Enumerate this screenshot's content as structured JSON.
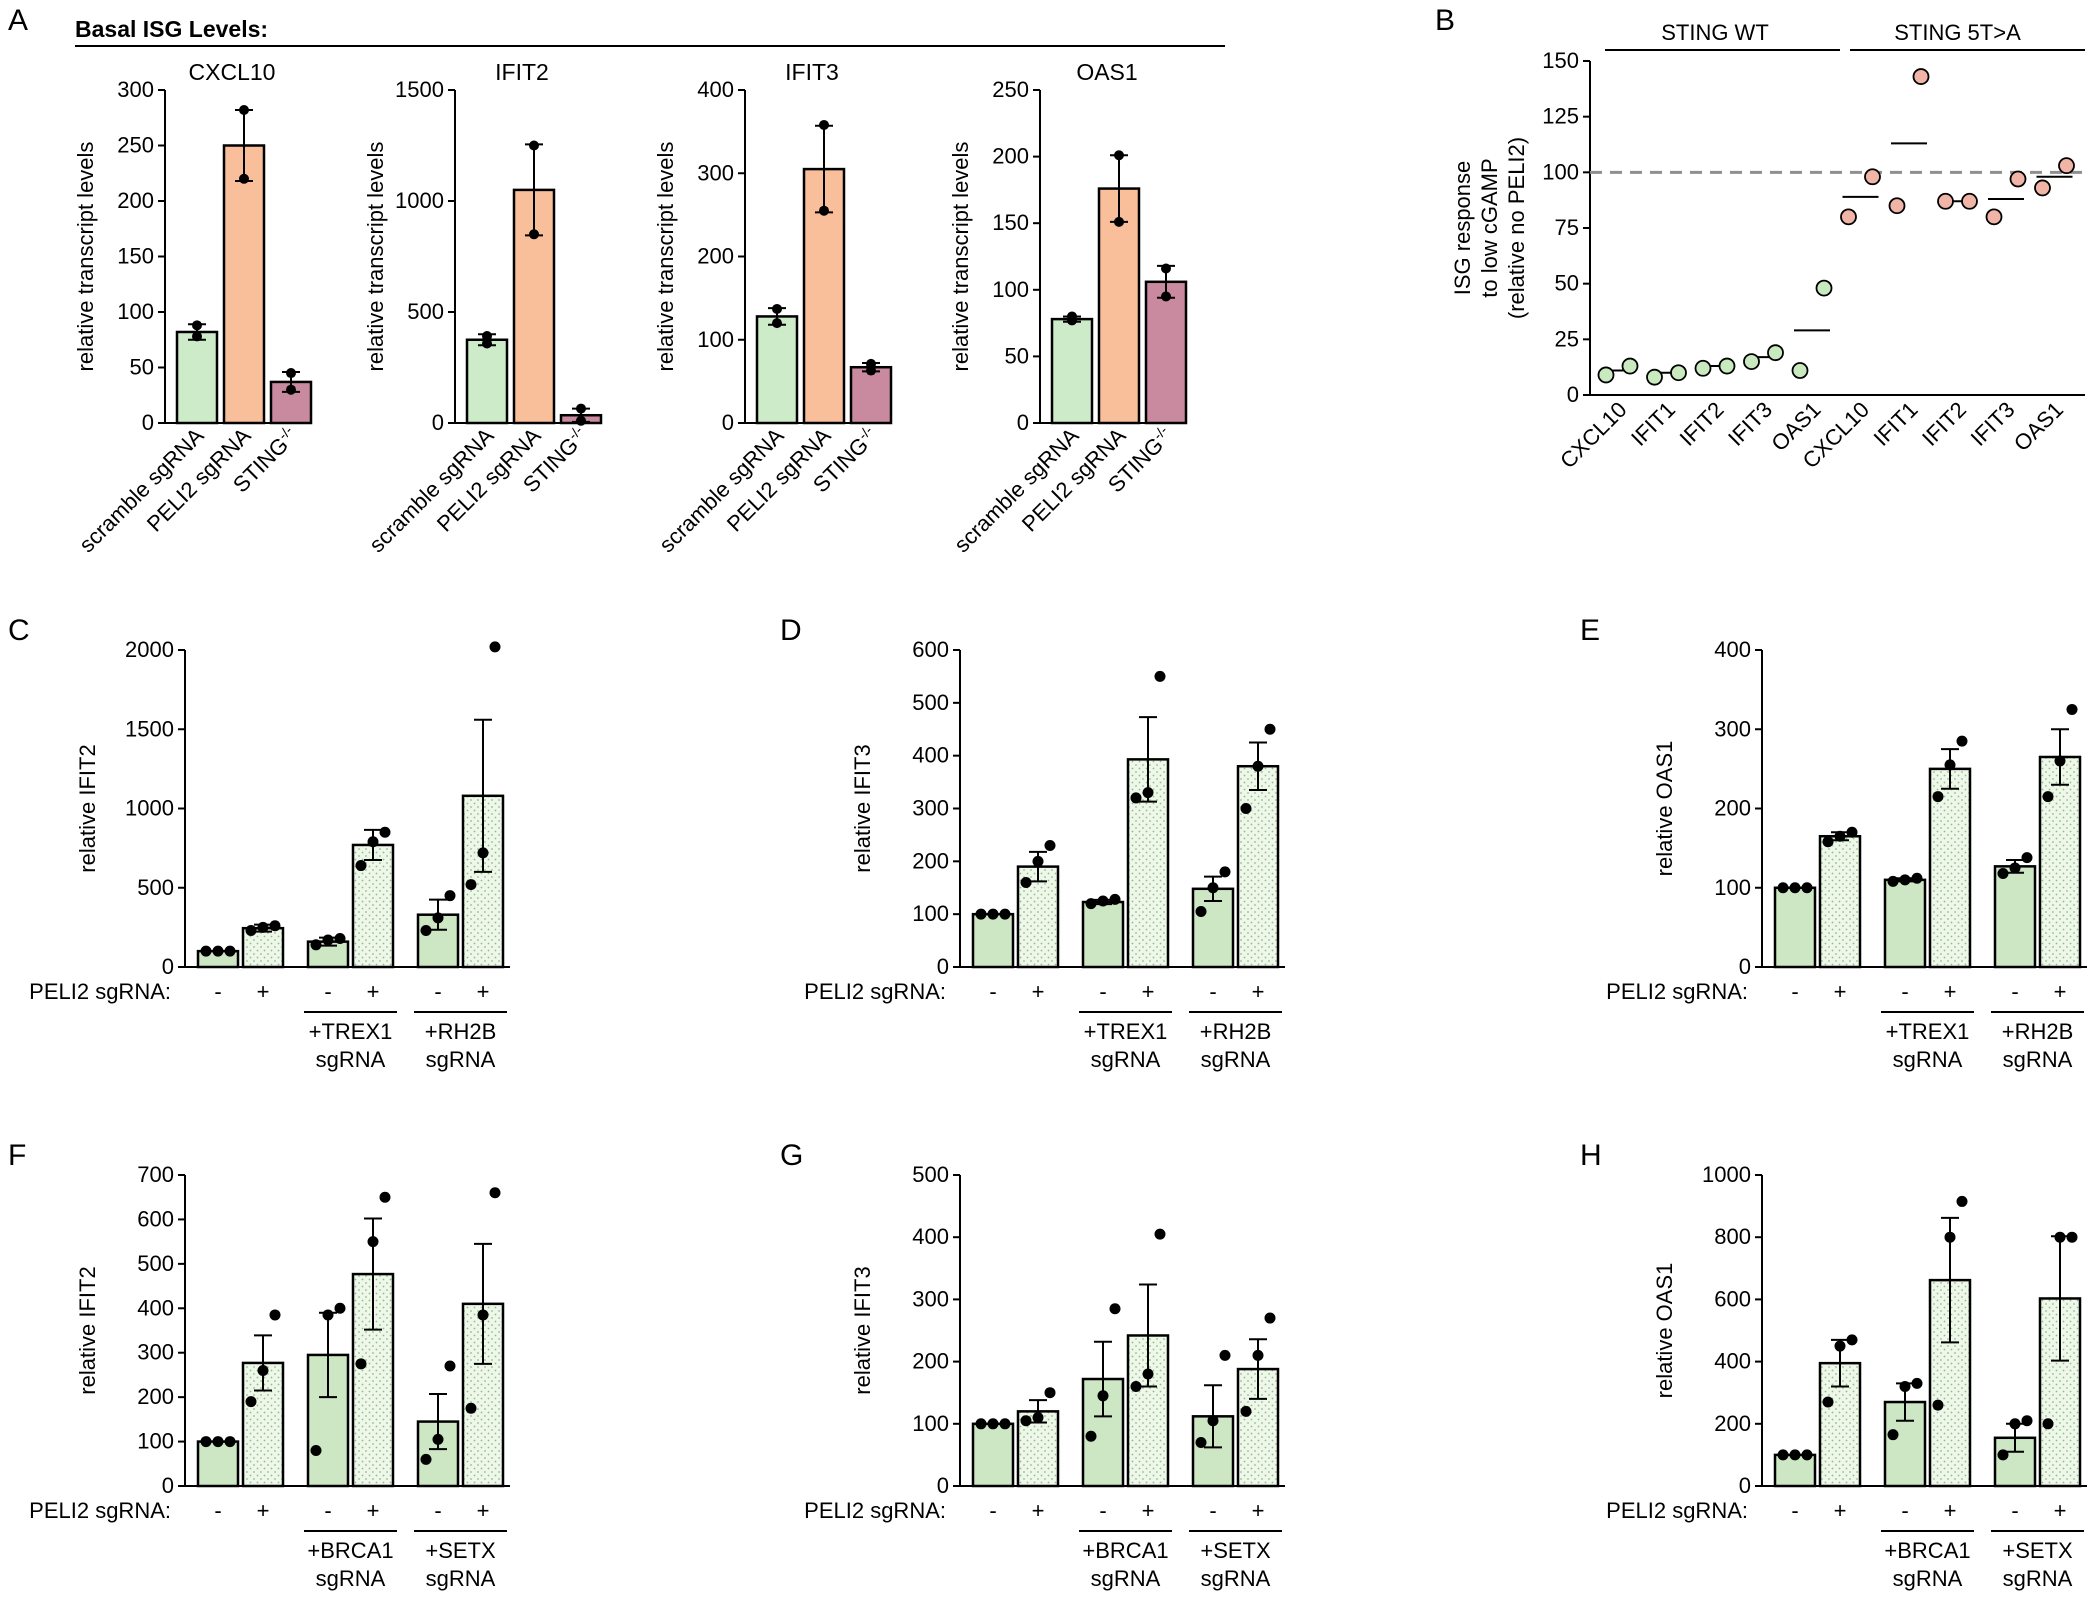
{
  "colors": {
    "scramble": "#cdeac9",
    "peli2": "#f9be9a",
    "sting_ko": "#c98a9f",
    "wt_dot": "#c9eabf",
    "mut_dot": "#f0b5a7",
    "ctrl": "#cde6c4",
    "dotted": "#eef7ea",
    "dot_pattern": "#8fbf82",
    "dash": "#8f8f8f"
  },
  "panel_a": {
    "letter": "A",
    "header": "Basal ISG Levels:",
    "ylabel": "relative transcript levels",
    "categories": [
      "scramble sgRNA",
      "PELI2 sgRNA",
      "STING-/-"
    ],
    "sting_base": "STING",
    "sting_sup": "-/-",
    "charts": [
      {
        "title": "CXCL10",
        "ymax": 300,
        "ticks": [
          0,
          50,
          100,
          150,
          200,
          250,
          300
        ],
        "values": [
          82,
          250,
          37
        ],
        "errors": [
          7,
          32,
          9
        ],
        "points": [
          [
            78,
            88
          ],
          [
            220,
            282
          ],
          [
            30,
            45
          ]
        ]
      },
      {
        "title": "IFIT2",
        "ymax": 1500,
        "ticks": [
          0,
          500,
          1000,
          1500
        ],
        "values": [
          375,
          1050,
          35
        ],
        "errors": [
          25,
          205,
          30
        ],
        "points": [
          [
            358,
            392
          ],
          [
            850,
            1250
          ],
          [
            10,
            65
          ]
        ]
      },
      {
        "title": "IFIT3",
        "ymax": 400,
        "ticks": [
          0,
          100,
          200,
          300,
          400
        ],
        "values": [
          128,
          305,
          67
        ],
        "errors": [
          10,
          52,
          5
        ],
        "points": [
          [
            120,
            137
          ],
          [
            255,
            358
          ],
          [
            63,
            71
          ]
        ]
      },
      {
        "title": "OAS1",
        "ymax": 250,
        "ticks": [
          0,
          50,
          100,
          150,
          200,
          250
        ],
        "values": [
          78,
          176,
          106
        ],
        "errors": [
          2,
          25,
          12
        ],
        "points": [
          [
            77,
            80
          ],
          [
            151,
            201
          ],
          [
            95,
            116
          ]
        ]
      }
    ]
  },
  "panel_b": {
    "letter": "B",
    "ylabel_lines": [
      "ISG response",
      "to low cGAMP",
      "(relative no PELI2)"
    ],
    "ymax": 150,
    "ticks": [
      0,
      25,
      50,
      75,
      100,
      125,
      150
    ],
    "ref_line": 100,
    "group_wt": "STING WT",
    "group_mut": "STING 5T>A",
    "categories": [
      "CXCL10",
      "IFIT1",
      "IFIT2",
      "IFIT3",
      "OAS1",
      "CXCL10",
      "IFIT1",
      "IFIT2",
      "IFIT3",
      "OAS1"
    ],
    "means": [
      11,
      10,
      13,
      17,
      29,
      89,
      113,
      87,
      88,
      98
    ],
    "points": [
      [
        9,
        13
      ],
      [
        8,
        10
      ],
      [
        12,
        13
      ],
      [
        15,
        19
      ],
      [
        11,
        48
      ],
      [
        80,
        98
      ],
      [
        85,
        143
      ],
      [
        87,
        87
      ],
      [
        80,
        97
      ],
      [
        93,
        103
      ]
    ]
  },
  "knockdown": {
    "row_label": "PELI2 sgRNA:",
    "signs": [
      "-",
      "+",
      "-",
      "+",
      "-",
      "+"
    ],
    "panels": [
      {
        "letter": "C",
        "ylabel": "relative IFIT2",
        "ymax": 2000,
        "ticks": [
          0,
          500,
          1000,
          1500,
          2000
        ],
        "groups": [
          "+TREX1",
          "+RH2B"
        ],
        "sublabel": "sgRNA",
        "bars": [
          {
            "mean": 100,
            "sem": 0,
            "pts": [
              100,
              100,
              100
            ]
          },
          {
            "mean": 245,
            "sem": 22,
            "pts": [
              230,
              250,
              260
            ]
          },
          {
            "mean": 160,
            "sem": 25,
            "pts": [
              140,
              170,
              180
            ]
          },
          {
            "mean": 770,
            "sem": 95,
            "pts": [
              640,
              790,
              850
            ]
          },
          {
            "mean": 330,
            "sem": 95,
            "pts": [
              230,
              310,
              450
            ]
          },
          {
            "mean": 1080,
            "sem": 480,
            "pts": [
              520,
              720,
              2020
            ]
          }
        ]
      },
      {
        "letter": "D",
        "ylabel": "relative IFIT3",
        "ymax": 600,
        "ticks": [
          0,
          100,
          200,
          300,
          400,
          500,
          600
        ],
        "groups": [
          "+TREX1",
          "+RH2B"
        ],
        "sublabel": "sgRNA",
        "bars": [
          {
            "mean": 100,
            "sem": 0,
            "pts": [
              100,
              100,
              100
            ]
          },
          {
            "mean": 190,
            "sem": 28,
            "pts": [
              160,
              200,
              230
            ]
          },
          {
            "mean": 123,
            "sem": 4,
            "pts": [
              120,
              125,
              128
            ]
          },
          {
            "mean": 393,
            "sem": 80,
            "pts": [
              320,
              330,
              550
            ]
          },
          {
            "mean": 148,
            "sem": 23,
            "pts": [
              105,
              150,
              180
            ]
          },
          {
            "mean": 380,
            "sem": 45,
            "pts": [
              300,
              380,
              450
            ]
          }
        ]
      },
      {
        "letter": "E",
        "ylabel": "relative OAS1",
        "ymax": 400,
        "ticks": [
          0,
          100,
          200,
          300,
          400
        ],
        "groups": [
          "+TREX1",
          "+RH2B"
        ],
        "sublabel": "sgRNA",
        "bars": [
          {
            "mean": 100,
            "sem": 0,
            "pts": [
              100,
              100,
              100
            ]
          },
          {
            "mean": 165,
            "sem": 5,
            "pts": [
              158,
              165,
              170
            ]
          },
          {
            "mean": 110,
            "sem": 2,
            "pts": [
              108,
              110,
              112
            ]
          },
          {
            "mean": 250,
            "sem": 25,
            "pts": [
              215,
              255,
              285
            ]
          },
          {
            "mean": 127,
            "sem": 8,
            "pts": [
              118,
              125,
              138
            ]
          },
          {
            "mean": 265,
            "sem": 35,
            "pts": [
              215,
              260,
              325
            ]
          }
        ]
      },
      {
        "letter": "F",
        "ylabel": "relative IFIT2",
        "ymax": 700,
        "ticks": [
          0,
          100,
          200,
          300,
          400,
          500,
          600,
          700
        ],
        "groups": [
          "+BRCA1",
          "+SETX"
        ],
        "sublabel": "sgRNA",
        "bars": [
          {
            "mean": 100,
            "sem": 0,
            "pts": [
              100,
              100,
              100
            ]
          },
          {
            "mean": 277,
            "sem": 62,
            "pts": [
              190,
              260,
              385
            ]
          },
          {
            "mean": 295,
            "sem": 95,
            "pts": [
              80,
              385,
              400
            ]
          },
          {
            "mean": 477,
            "sem": 125,
            "pts": [
              275,
              550,
              650
            ]
          },
          {
            "mean": 145,
            "sem": 62,
            "pts": [
              60,
              105,
              270
            ]
          },
          {
            "mean": 410,
            "sem": 135,
            "pts": [
              175,
              385,
              660
            ]
          }
        ]
      },
      {
        "letter": "G",
        "ylabel": "relative IFIT3",
        "ymax": 500,
        "ticks": [
          0,
          100,
          200,
          300,
          400,
          500
        ],
        "groups": [
          "+BRCA1",
          "+SETX"
        ],
        "sublabel": "sgRNA",
        "bars": [
          {
            "mean": 100,
            "sem": 0,
            "pts": [
              100,
              100,
              100
            ]
          },
          {
            "mean": 120,
            "sem": 18,
            "pts": [
              105,
              110,
              150
            ]
          },
          {
            "mean": 172,
            "sem": 60,
            "pts": [
              80,
              145,
              285
            ]
          },
          {
            "mean": 242,
            "sem": 82,
            "pts": [
              160,
              180,
              405
            ]
          },
          {
            "mean": 112,
            "sem": 50,
            "pts": [
              70,
              105,
              210
            ]
          },
          {
            "mean": 188,
            "sem": 48,
            "pts": [
              120,
              210,
              270
            ]
          }
        ]
      },
      {
        "letter": "H",
        "ylabel": "relative OAS1",
        "ymax": 1000,
        "ticks": [
          0,
          200,
          400,
          600,
          800,
          1000
        ],
        "groups": [
          "+BRCA1",
          "+SETX"
        ],
        "sublabel": "sgRNA",
        "bars": [
          {
            "mean": 100,
            "sem": 0,
            "pts": [
              100,
              100,
              100
            ]
          },
          {
            "mean": 395,
            "sem": 75,
            "pts": [
              270,
              450,
              470
            ]
          },
          {
            "mean": 270,
            "sem": 60,
            "pts": [
              165,
              320,
              330
            ]
          },
          {
            "mean": 662,
            "sem": 200,
            "pts": [
              260,
              800,
              915
            ]
          },
          {
            "mean": 155,
            "sem": 45,
            "pts": [
              100,
              200,
              210
            ]
          },
          {
            "mean": 603,
            "sem": 200,
            "pts": [
              200,
              800,
              800
            ]
          }
        ]
      }
    ]
  },
  "chart_data": [
    {
      "type": "bar",
      "title": "CXCL10",
      "ylabel": "relative transcript levels",
      "categories": [
        "scramble sgRNA",
        "PELI2 sgRNA",
        "STING-/-"
      ],
      "values": [
        82,
        250,
        37
      ],
      "ylim": [
        0,
        300
      ]
    },
    {
      "type": "bar",
      "title": "IFIT2",
      "ylabel": "relative transcript levels",
      "categories": [
        "scramble sgRNA",
        "PELI2 sgRNA",
        "STING-/-"
      ],
      "values": [
        375,
        1050,
        35
      ],
      "ylim": [
        0,
        1500
      ]
    },
    {
      "type": "bar",
      "title": "IFIT3",
      "ylabel": "relative transcript levels",
      "categories": [
        "scramble sgRNA",
        "PELI2 sgRNA",
        "STING-/-"
      ],
      "values": [
        128,
        305,
        67
      ],
      "ylim": [
        0,
        400
      ]
    },
    {
      "type": "bar",
      "title": "OAS1",
      "ylabel": "relative transcript levels",
      "categories": [
        "scramble sgRNA",
        "PELI2 sgRNA",
        "STING-/-"
      ],
      "values": [
        78,
        176,
        106
      ],
      "ylim": [
        0,
        250
      ]
    },
    {
      "type": "scatter",
      "title": "ISG response to low cGAMP",
      "ylabel": "ISG response to low cGAMP (relative no PELI2)",
      "categories": [
        "CXCL10",
        "IFIT1",
        "IFIT2",
        "IFIT3",
        "OAS1",
        "CXCL10",
        "IFIT1",
        "IFIT2",
        "IFIT3",
        "OAS1"
      ],
      "series": [
        {
          "name": "STING WT",
          "values": [
            11,
            10,
            13,
            17,
            29
          ]
        },
        {
          "name": "STING 5T>A",
          "values": [
            89,
            113,
            87,
            88,
            98
          ]
        }
      ],
      "ylim": [
        0,
        150
      ]
    },
    {
      "type": "bar",
      "ylabel": "relative IFIT2",
      "categories": [
        "-",
        "+",
        "+TREX1 -",
        "+TREX1 +",
        "+RH2B -",
        "+RH2B +"
      ],
      "values": [
        100,
        245,
        160,
        770,
        330,
        1080
      ],
      "ylim": [
        0,
        2000
      ]
    },
    {
      "type": "bar",
      "ylabel": "relative IFIT3",
      "categories": [
        "-",
        "+",
        "+TREX1 -",
        "+TREX1 +",
        "+RH2B -",
        "+RH2B +"
      ],
      "values": [
        100,
        190,
        123,
        393,
        148,
        380
      ],
      "ylim": [
        0,
        600
      ]
    },
    {
      "type": "bar",
      "ylabel": "relative OAS1",
      "categories": [
        "-",
        "+",
        "+TREX1 -",
        "+TREX1 +",
        "+RH2B -",
        "+RH2B +"
      ],
      "values": [
        100,
        165,
        110,
        250,
        127,
        265
      ],
      "ylim": [
        0,
        400
      ]
    },
    {
      "type": "bar",
      "ylabel": "relative IFIT2",
      "categories": [
        "-",
        "+",
        "+BRCA1 -",
        "+BRCA1 +",
        "+SETX -",
        "+SETX +"
      ],
      "values": [
        100,
        277,
        295,
        477,
        145,
        410
      ],
      "ylim": [
        0,
        700
      ]
    },
    {
      "type": "bar",
      "ylabel": "relative IFIT3",
      "categories": [
        "-",
        "+",
        "+BRCA1 -",
        "+BRCA1 +",
        "+SETX -",
        "+SETX +"
      ],
      "values": [
        100,
        120,
        172,
        242,
        112,
        188
      ],
      "ylim": [
        0,
        500
      ]
    },
    {
      "type": "bar",
      "ylabel": "relative OAS1",
      "categories": [
        "-",
        "+",
        "+BRCA1 -",
        "+BRCA1 +",
        "+SETX -",
        "+SETX +"
      ],
      "values": [
        100,
        395,
        270,
        662,
        155,
        603
      ],
      "ylim": [
        0,
        1000
      ]
    }
  ]
}
